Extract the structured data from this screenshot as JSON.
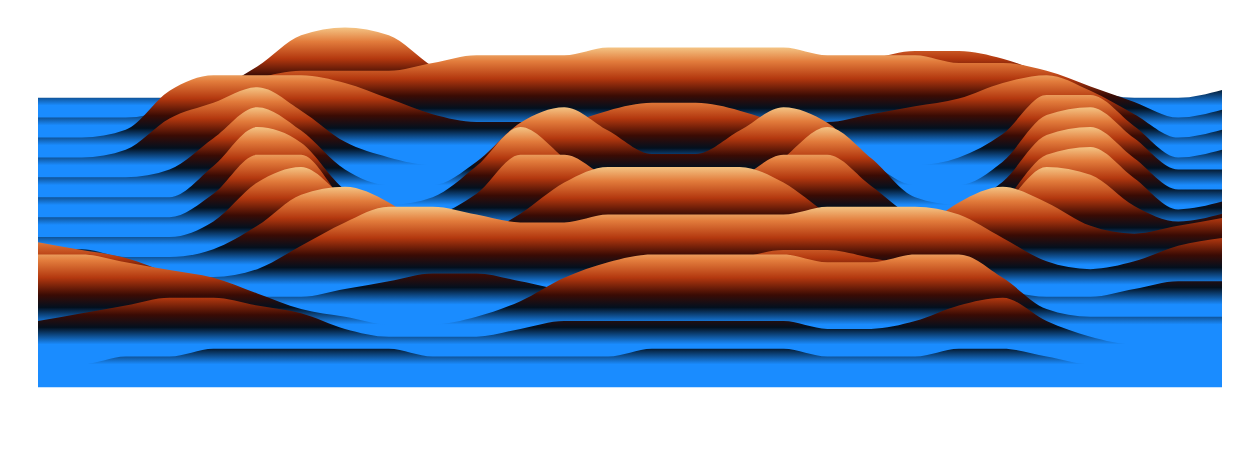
{
  "chart_data": {
    "type": "surface",
    "tick_labels": false,
    "zlim": [
      0,
      1
    ],
    "cells": [
      [
        0.1,
        0.1,
        0.1,
        0.1,
        0.2,
        0.5,
        0.9,
        1.0,
        0.9,
        0.5,
        0.2,
        0.2,
        0.3,
        0.3,
        0.3,
        0.3,
        0.3,
        0.4,
        0.5,
        0.6,
        0.7,
        0.7,
        0.6,
        0.4,
        0.2,
        0.1,
        0.1,
        0.2
      ],
      [
        0.1,
        0.1,
        0.1,
        0.2,
        0.4,
        0.6,
        0.7,
        0.7,
        0.7,
        0.8,
        0.9,
        0.9,
        0.9,
        1.0,
        1.0,
        1.0,
        1.0,
        1.0,
        0.9,
        0.9,
        0.9,
        0.8,
        0.8,
        0.7,
        0.5,
        0.3,
        0.1,
        0.2
      ],
      [
        0.1,
        0.1,
        0.2,
        0.7,
        0.9,
        0.9,
        0.9,
        0.8,
        0.6,
        0.4,
        0.3,
        0.3,
        0.3,
        0.3,
        0.3,
        0.3,
        0.3,
        0.3,
        0.3,
        0.4,
        0.5,
        0.6,
        0.8,
        0.9,
        0.7,
        0.4,
        0.1,
        0.2
      ],
      [
        0.1,
        0.1,
        0.2,
        0.6,
        0.8,
        1.0,
        0.7,
        0.3,
        0.1,
        0.0,
        0.0,
        0.2,
        0.5,
        0.7,
        0.8,
        0.8,
        0.7,
        0.5,
        0.2,
        0.0,
        0.0,
        0.1,
        0.4,
        0.9,
        0.9,
        0.5,
        0.1,
        0.2
      ],
      [
        0.1,
        0.1,
        0.1,
        0.2,
        0.6,
        1.0,
        0.7,
        0.2,
        0.0,
        0.0,
        0.3,
        0.8,
        1.0,
        0.7,
        0.4,
        0.4,
        0.7,
        1.0,
        0.8,
        0.3,
        0.0,
        0.0,
        0.3,
        0.9,
        1.0,
        0.6,
        0.2,
        0.2
      ],
      [
        0.1,
        0.1,
        0.1,
        0.1,
        0.5,
        1.0,
        0.8,
        0.2,
        0.0,
        0.1,
        0.5,
        1.0,
        0.6,
        0.1,
        0.0,
        0.0,
        0.1,
        0.6,
        1.0,
        0.6,
        0.1,
        0.0,
        0.3,
        0.9,
        1.0,
        0.6,
        0.2,
        0.2
      ],
      [
        0.1,
        0.1,
        0.1,
        0.1,
        0.4,
        0.9,
        0.9,
        0.3,
        0.0,
        0.1,
        0.4,
        0.9,
        0.9,
        0.6,
        0.4,
        0.4,
        0.6,
        0.9,
        0.9,
        0.5,
        0.1,
        0.0,
        0.3,
        0.9,
        1.0,
        0.6,
        0.2,
        0.3
      ],
      [
        0.1,
        0.1,
        0.1,
        0.1,
        0.3,
        0.8,
        1.0,
        0.6,
        0.2,
        0.0,
        0.1,
        0.4,
        0.8,
        1.0,
        1.0,
        1.0,
        1.0,
        0.8,
        0.4,
        0.1,
        0.0,
        0.1,
        0.5,
        1.0,
        0.9,
        0.5,
        0.3,
        0.4
      ],
      [
        0.2,
        0.2,
        0.1,
        0.1,
        0.2,
        0.5,
        0.9,
        1.0,
        0.8,
        0.4,
        0.1,
        0.0,
        0.1,
        0.2,
        0.2,
        0.2,
        0.1,
        0.0,
        0.0,
        0.1,
        0.4,
        0.8,
        1.0,
        0.8,
        0.5,
        0.4,
        0.5,
        0.6
      ],
      [
        0.4,
        0.3,
        0.2,
        0.1,
        0.1,
        0.2,
        0.5,
        0.8,
        1.0,
        1.0,
        0.9,
        0.8,
        0.8,
        0.9,
        0.9,
        0.9,
        0.9,
        0.9,
        1.0,
        1.0,
        1.0,
        0.9,
        0.6,
        0.3,
        0.2,
        0.3,
        0.5,
        0.6
      ],
      [
        0.8,
        0.7,
        0.6,
        0.4,
        0.2,
        0.1,
        0.1,
        0.2,
        0.3,
        0.4,
        0.4,
        0.3,
        0.2,
        0.2,
        0.3,
        0.5,
        0.6,
        0.7,
        0.7,
        0.6,
        0.5,
        0.4,
        0.2,
        0.1,
        0.1,
        0.2,
        0.3,
        0.3
      ],
      [
        0.9,
        0.9,
        0.8,
        0.7,
        0.6,
        0.4,
        0.2,
        0.1,
        0.0,
        0.0,
        0.1,
        0.3,
        0.6,
        0.8,
        0.9,
        0.9,
        0.9,
        0.9,
        0.8,
        0.8,
        0.9,
        0.9,
        0.6,
        0.2,
        0.1,
        0.1,
        0.1,
        0.1
      ],
      [
        0.3,
        0.4,
        0.5,
        0.6,
        0.6,
        0.5,
        0.4,
        0.2,
        0.1,
        0.1,
        0.1,
        0.2,
        0.3,
        0.3,
        0.3,
        0.3,
        0.3,
        0.3,
        0.2,
        0.2,
        0.3,
        0.5,
        0.6,
        0.3,
        0.1,
        0.0,
        0.0,
        0.0
      ],
      [
        0.0,
        0.0,
        0.1,
        0.1,
        0.2,
        0.2,
        0.2,
        0.2,
        0.2,
        0.1,
        0.1,
        0.1,
        0.1,
        0.1,
        0.2,
        0.2,
        0.2,
        0.2,
        0.1,
        0.1,
        0.1,
        0.2,
        0.2,
        0.1,
        0.0,
        0.0,
        0.0,
        0.0
      ]
    ]
  }
}
